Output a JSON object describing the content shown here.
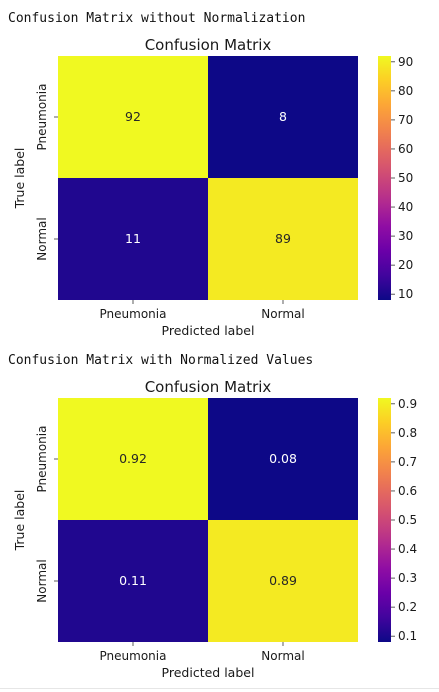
{
  "captions": {
    "first": "Confusion Matrix without Normalization",
    "second": "Confusion Matrix with Normalized Values"
  },
  "colors": {
    "colormap": "plasma",
    "low": "#1b0c8a",
    "high": "#f3f524"
  },
  "chart_data": [
    {
      "type": "heatmap",
      "title": "Confusion Matrix",
      "xlabel": "Predicted label",
      "ylabel": "True label",
      "x_categories": [
        "Pneumonia",
        "Normal"
      ],
      "y_categories": [
        "Pneumonia",
        "Normal"
      ],
      "matrix": [
        [
          92,
          8
        ],
        [
          11,
          89
        ]
      ],
      "cell_labels": [
        [
          "92",
          "8"
        ],
        [
          "11",
          "89"
        ]
      ],
      "colorbar": {
        "range": [
          8,
          92
        ],
        "ticks": [
          10,
          20,
          30,
          40,
          50,
          60,
          70,
          80,
          90
        ],
        "tick_labels": [
          "10",
          "20",
          "30",
          "40",
          "50",
          "60",
          "70",
          "80",
          "90"
        ]
      }
    },
    {
      "type": "heatmap",
      "title": "Confusion Matrix",
      "xlabel": "Predicted label",
      "ylabel": "True label",
      "x_categories": [
        "Pneumonia",
        "Normal"
      ],
      "y_categories": [
        "Pneumonia",
        "Normal"
      ],
      "matrix": [
        [
          0.92,
          0.08
        ],
        [
          0.11,
          0.89
        ]
      ],
      "cell_labels": [
        [
          "0.92",
          "0.08"
        ],
        [
          "0.11",
          "0.89"
        ]
      ],
      "colorbar": {
        "range": [
          0.08,
          0.92
        ],
        "ticks": [
          0.1,
          0.2,
          0.3,
          0.4,
          0.5,
          0.6,
          0.7,
          0.8,
          0.9
        ],
        "tick_labels": [
          "0.1",
          "0.2",
          "0.3",
          "0.4",
          "0.5",
          "0.6",
          "0.7",
          "0.8",
          "0.9"
        ]
      }
    }
  ]
}
